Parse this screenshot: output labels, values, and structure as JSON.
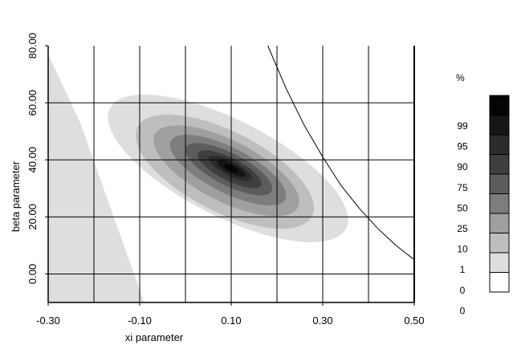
{
  "chart_data": {
    "type": "heatmap",
    "title": "",
    "xlabel": "xi parameter",
    "ylabel": "beta parameter",
    "xlim": [
      -0.3,
      0.5
    ],
    "ylim": [
      -10,
      80
    ],
    "x_ticks": [
      "-0.30",
      "-0.10",
      "0.10",
      "0.30",
      "0.50"
    ],
    "y_ticks": [
      "0.00",
      "20.00",
      "40.00",
      "60.00",
      "80.00"
    ],
    "x_gridlines": [
      -0.3,
      -0.2,
      -0.1,
      -0.0,
      0.1,
      0.2,
      0.3,
      0.4,
      0.5
    ],
    "y_gridlines": [
      0,
      20,
      40,
      60
    ],
    "grid": true,
    "peak": {
      "xi": 0.1,
      "beta": 37
    },
    "contour_levels_percent": [
      1,
      10,
      25,
      50,
      75,
      90,
      95,
      99
    ],
    "boundary_curve": {
      "x": [
        0.18,
        0.22,
        0.26,
        0.3,
        0.34,
        0.38,
        0.42,
        0.46,
        0.5
      ],
      "y": [
        80,
        65,
        52,
        41,
        31,
        23,
        16,
        10,
        5
      ]
    },
    "legend": {
      "title": "%",
      "labels": [
        "99",
        "95",
        "90",
        "75",
        "50",
        "25",
        "10",
        "1",
        "0",
        "0"
      ],
      "colors": [
        "#050505",
        "#161616",
        "#2b2b2b",
        "#3e3e3e",
        "#5c5c5c",
        "#7d7d7d",
        "#9f9f9f",
        "#bebebe",
        "#dedede",
        "#ffffff"
      ],
      "placement": "right"
    }
  }
}
